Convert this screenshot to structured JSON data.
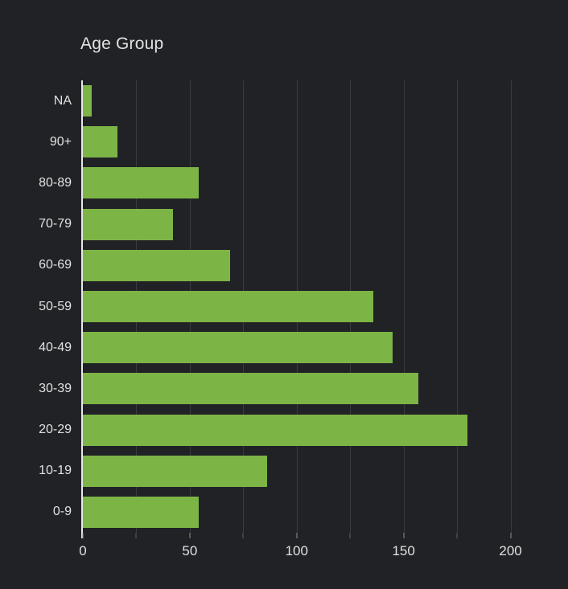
{
  "panel": {
    "title": "Age Group"
  },
  "colors": {
    "background": "#212226",
    "bar": "#7db446",
    "grid": "#383b41",
    "axis_line": "#e9e9e9",
    "tick": "#5c6066",
    "tick_major": "#8e9196",
    "text": "#e2e2e2"
  },
  "chart_data": {
    "type": "bar",
    "orientation": "horizontal",
    "title": "Age Group",
    "categories": [
      "NA",
      "90+",
      "80-89",
      "70-79",
      "60-69",
      "50-59",
      "40-49",
      "30-39",
      "20-29",
      "10-19",
      "0-9"
    ],
    "values": [
      4,
      16,
      54,
      42,
      69,
      136,
      145,
      157,
      180,
      86,
      54
    ],
    "xlabel": "",
    "ylabel": "Age Group",
    "xlim": [
      0,
      225
    ],
    "x_ticks": [
      0,
      50,
      100,
      150,
      200
    ],
    "minor_tick_step": 25,
    "grid": true,
    "legend": false,
    "bar_color": "#7db446",
    "background_color": "#212226"
  }
}
